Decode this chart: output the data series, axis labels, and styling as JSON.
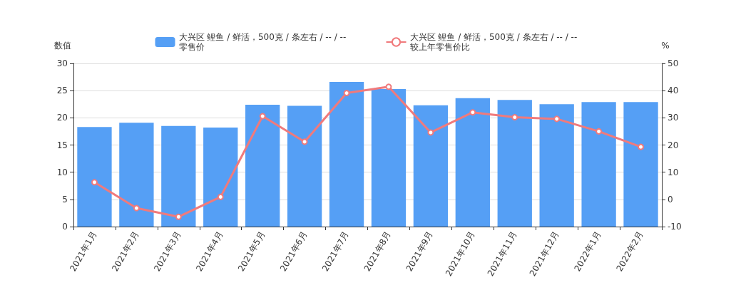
{
  "chart_data": {
    "type": "bar",
    "ylabel": "数值",
    "y2label": "%",
    "categories": [
      "2021年1月",
      "2021年2月",
      "2021年3月",
      "2021年4月",
      "2021年5月",
      "2021年6月",
      "2021年7月",
      "2021年8月",
      "2021年9月",
      "2021年10月",
      "2021年11月",
      "2021年12月",
      "2022年1月",
      "2022年2月"
    ],
    "series": [
      {
        "name": "大兴区 鲤鱼 / 鲜活，500克 / 条左右 / -- / -- 零售价",
        "color": "#559ff5",
        "values": [
          18.3,
          19.1,
          18.5,
          18.2,
          22.4,
          22.2,
          26.6,
          25.3,
          22.3,
          23.6,
          23.3,
          22.5,
          22.9,
          22.9
        ]
      },
      {
        "name": "大兴区 鲤鱼 / 鲜活，500克 / 条左右 / -- / -- 较上年零售价比",
        "color": "#f07a7c",
        "type": "line",
        "axis": "y2",
        "marker": "circle",
        "values": [
          6.3,
          -3.2,
          -6.4,
          0.9,
          30.6,
          21.2,
          39.1,
          41.4,
          24.6,
          32.0,
          30.2,
          29.6,
          25.0,
          19.3
        ]
      }
    ],
    "ylim": [
      0,
      30
    ],
    "yticks": [
      0,
      5,
      10,
      15,
      20,
      25,
      30
    ],
    "y2lim": [
      -10,
      50
    ],
    "y2ticks": [
      -10,
      0,
      10,
      20,
      30,
      40,
      50
    ],
    "grid": "y",
    "legend": "top"
  }
}
